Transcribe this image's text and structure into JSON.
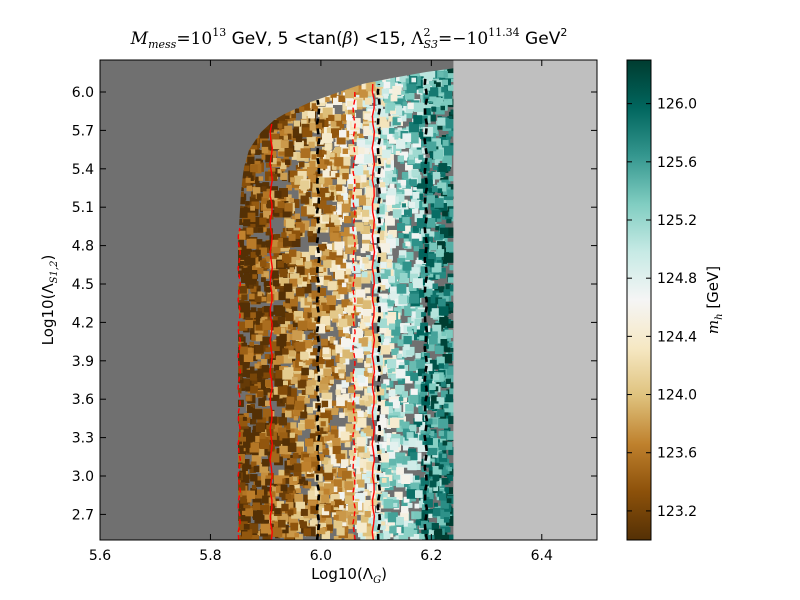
{
  "chart_data": {
    "type": "heatmap",
    "title": {
      "m_sym": "M",
      "m_sub": "mess",
      "eq1": "=10",
      "e1": "13",
      "t1": " GeV, 5 <tan(",
      "beta": "β",
      "t2": ") <15, ",
      "lambda_sym": "Λ",
      "lambda_sup": "2",
      "lambda_sub": "S3",
      "eq2": "=−10",
      "e2": "11.34",
      "t3": " GeV",
      "t3_sup": "2"
    },
    "xlabel": {
      "main": "Log10(Λ",
      "sub": "G",
      "close": ")"
    },
    "ylabel": {
      "main": "Log10(Λ",
      "sub": "S1,2",
      "close": ")"
    },
    "xlim": [
      5.6,
      6.5
    ],
    "ylim": [
      2.5,
      6.25
    ],
    "xticks": [
      5.6,
      5.8,
      6.0,
      6.2,
      6.4
    ],
    "xtick_labels": [
      "5.6",
      "5.8",
      "6.0",
      "6.2",
      "6.4"
    ],
    "yticks": [
      2.7,
      3.0,
      3.3,
      3.6,
      3.9,
      4.2,
      4.5,
      4.8,
      5.1,
      5.4,
      5.7,
      6.0
    ],
    "ytick_labels": [
      "2.7",
      "3.0",
      "3.3",
      "3.6",
      "3.9",
      "4.2",
      "4.5",
      "4.8",
      "5.1",
      "5.4",
      "5.7",
      "6.0"
    ],
    "colorbar": {
      "label": {
        "sym": "m",
        "sub": "h",
        "unit": " [GeV]"
      },
      "range": [
        123.0,
        126.3
      ],
      "ticks": [
        123.2,
        123.6,
        124.0,
        124.4,
        124.8,
        125.2,
        125.6,
        126.0
      ],
      "tick_labels": [
        "123.2",
        "123.6",
        "124.0",
        "124.4",
        "124.8",
        "125.2",
        "125.6",
        "126.0"
      ],
      "colormap": "BrBG",
      "stops": [
        "#543005",
        "#8c510a",
        "#bf812d",
        "#dfc27d",
        "#f6e8c3",
        "#f5f5f5",
        "#c7eae5",
        "#80cdc1",
        "#35978f",
        "#01665e",
        "#003c30"
      ]
    },
    "regions": {
      "excluded_left_color": "#707070",
      "excluded_right_color": "#bfbfbf",
      "excluded_right_start_x": 6.24,
      "boundary": [
        [
          6.35,
          6.25
        ],
        [
          6.18,
          6.15
        ],
        [
          6.08,
          6.07
        ],
        [
          5.98,
          5.92
        ],
        [
          5.92,
          5.8
        ],
        [
          5.89,
          5.68
        ],
        [
          5.87,
          5.55
        ],
        [
          5.86,
          5.4
        ],
        [
          5.855,
          5.2
        ],
        [
          5.85,
          4.8
        ],
        [
          5.85,
          2.5
        ]
      ]
    },
    "contours": [
      {
        "style": "red-solid",
        "x": 5.91
      },
      {
        "style": "red-solid",
        "x": 6.095
      },
      {
        "style": "red-dashed",
        "x": 5.852
      },
      {
        "style": "red-dashed",
        "x": 6.06
      },
      {
        "style": "black-dashed",
        "x": 5.995
      },
      {
        "style": "black-dashed",
        "x": 6.105
      },
      {
        "style": "black-dashed",
        "x": 6.19
      }
    ],
    "color_gradient": [
      [
        5.85,
        123.0
      ],
      [
        5.95,
        123.5
      ],
      [
        6.02,
        123.9
      ],
      [
        6.08,
        124.4
      ],
      [
        6.12,
        124.9
      ],
      [
        6.17,
        125.3
      ],
      [
        6.21,
        125.7
      ],
      [
        6.24,
        126.0
      ]
    ]
  }
}
